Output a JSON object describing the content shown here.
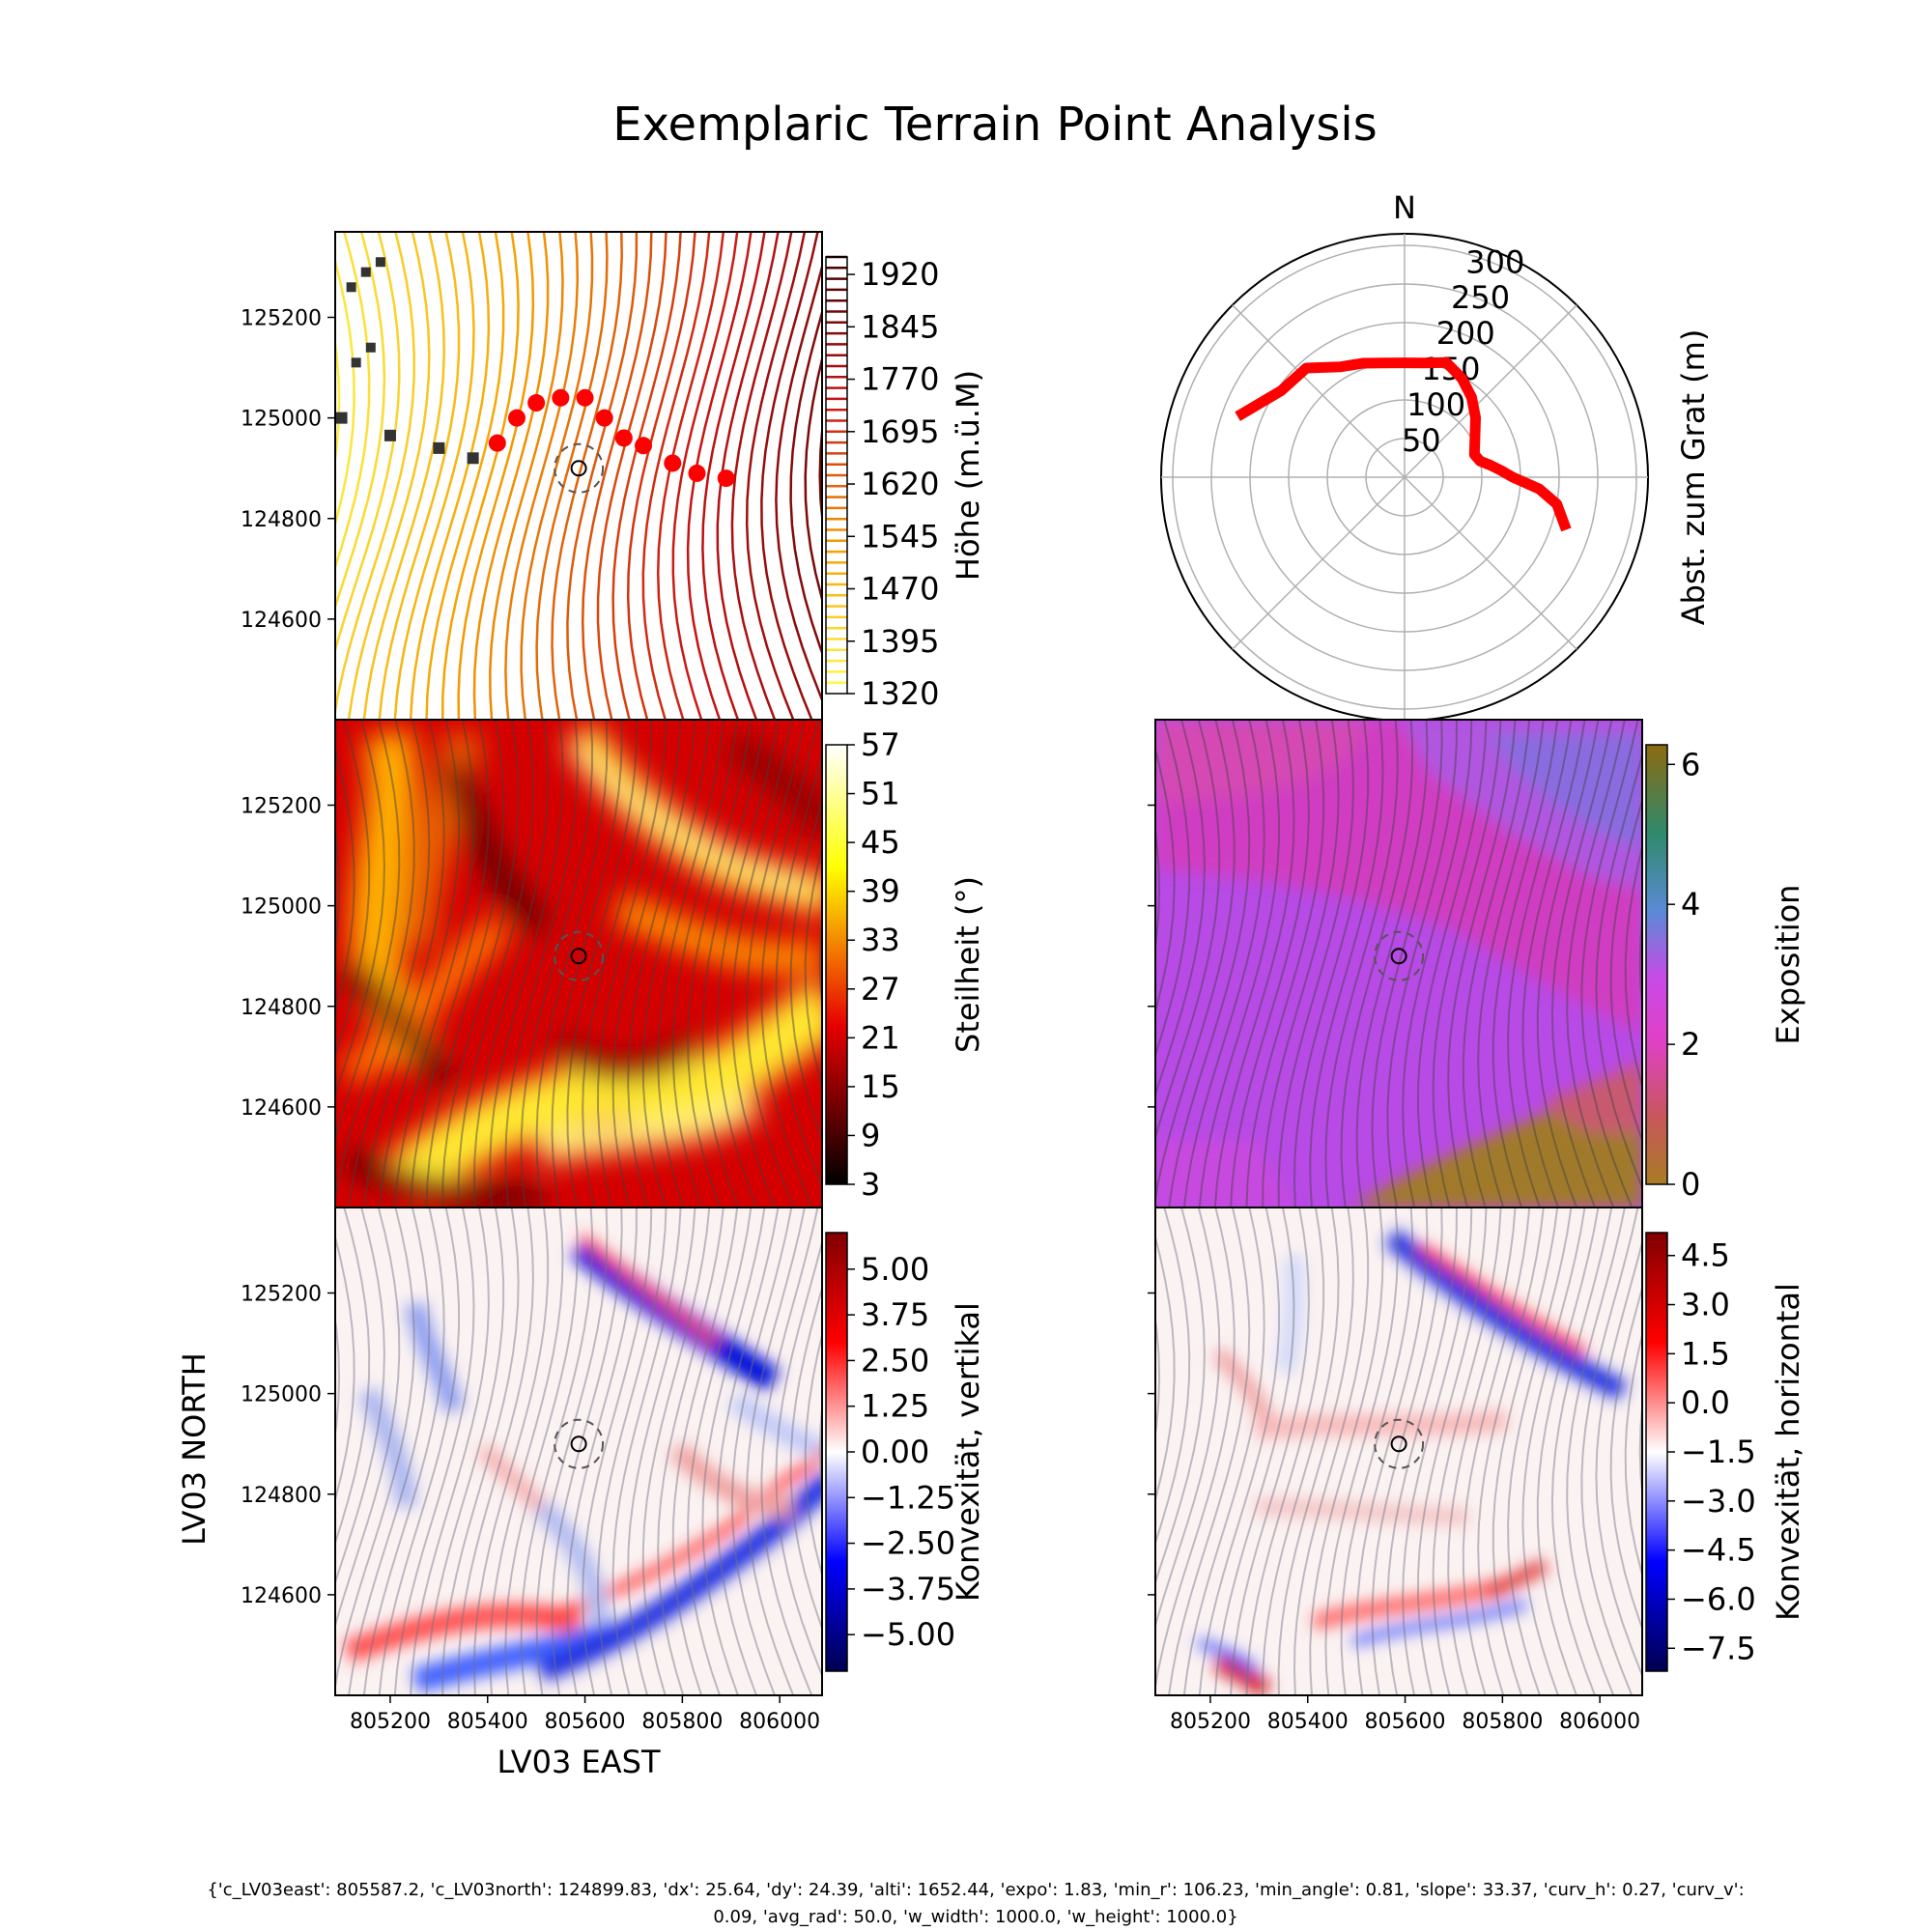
{
  "title": "Exemplaric Terrain Point Analysis",
  "footer": {
    "line1": "{'c_LV03east': 805587.2, 'c_LV03north': 124899.83, 'dx': 25.64, 'dy': 24.39, 'alti': 1652.44, 'expo': 1.83, 'min_r': 106.23, 'min_angle': 0.81, 'slope': 33.37, 'curv_h': 0.27, 'curv_v':",
    "line2": "0.09, 'avg_rad': 50.0, 'w_width': 1000.0, 'w_height': 1000.0}"
  },
  "axes": {
    "xlabel": "LV03 EAST",
    "ylabel": "LV03 NORTH",
    "xticks": [
      "805200",
      "805400",
      "805600",
      "805800",
      "806000"
    ],
    "xtick_values": [
      805200,
      805400,
      805600,
      805800,
      806000
    ],
    "yticks": [
      "125200",
      "125000",
      "124800",
      "124600"
    ],
    "ytick_values": [
      125200,
      125000,
      124800,
      124600
    ],
    "xlim": [
      805087,
      806087
    ],
    "ylim": [
      124400,
      125370
    ]
  },
  "chart_data": [
    {
      "type": "contour",
      "colorbar_label": "Höhe (m.ü.M)",
      "colorbar_ticks": [
        "1920",
        "1845",
        "1770",
        "1695",
        "1620",
        "1545",
        "1470",
        "1395",
        "1320"
      ],
      "colorbar_range": [
        1320,
        1945
      ],
      "ridge_points": [
        [
          805100,
          125000
        ],
        [
          805200,
          124965
        ],
        [
          805300,
          124940
        ],
        [
          805370,
          124920
        ],
        [
          805420,
          124950
        ],
        [
          805460,
          125000
        ],
        [
          805500,
          125030
        ],
        [
          805550,
          125040
        ],
        [
          805600,
          125040
        ],
        [
          805640,
          125000
        ],
        [
          805680,
          124960
        ],
        [
          805720,
          124945
        ],
        [
          805780,
          124910
        ],
        [
          805830,
          124890
        ],
        [
          805890,
          124880
        ]
      ]
    },
    {
      "type": "polar-line",
      "direction_label": "N",
      "rlabel": "Abst. zum Grat (m)",
      "rticks": [
        "50",
        "100",
        "150",
        "200",
        "250",
        "300"
      ],
      "rtick_values": [
        50,
        100,
        150,
        200,
        250,
        300
      ],
      "rmax": 315,
      "theta_deg": [
        -70,
        -55,
        -42,
        -30,
        -20,
        -10,
        0,
        10,
        20,
        30,
        40,
        50,
        62,
        72,
        78,
        82,
        86,
        90,
        95,
        100,
        108
      ],
      "r": [
        230,
        195,
        190,
        165,
        157,
        150,
        148,
        150,
        158,
        148,
        135,
        120,
        103,
        95,
        100,
        112,
        125,
        140,
        175,
        200,
        220
      ]
    },
    {
      "type": "heatmap",
      "colorbar_label": "Steilheit (°)",
      "colorbar_ticks": [
        "57",
        "51",
        "45",
        "39",
        "33",
        "27",
        "21",
        "15",
        "9",
        "3"
      ],
      "colorbar_range": [
        3,
        57
      ]
    },
    {
      "type": "heatmap",
      "colorbar_label": "Exposition",
      "colorbar_ticks": [
        "6",
        "4",
        "2",
        "0"
      ],
      "colorbar_range": [
        0,
        6.28
      ]
    },
    {
      "type": "heatmap",
      "colorbar_label": "Konvexität, vertikal",
      "colorbar_ticks": [
        "5.00",
        "3.75",
        "2.50",
        "1.25",
        "0.00",
        "−1.25",
        "−2.50",
        "−3.75",
        "−5.00"
      ],
      "colorbar_range": [
        -6,
        6
      ]
    },
    {
      "type": "heatmap",
      "colorbar_label": "Konvexität, horizontal",
      "colorbar_ticks": [
        "4.5",
        "3.0",
        "1.5",
        "0.0",
        "−1.5",
        "−3.0",
        "−4.5",
        "−6.0",
        "−7.5"
      ],
      "colorbar_range": [
        -8.2,
        5.2
      ]
    }
  ],
  "point": {
    "east": 805587.2,
    "north": 124899.83
  }
}
